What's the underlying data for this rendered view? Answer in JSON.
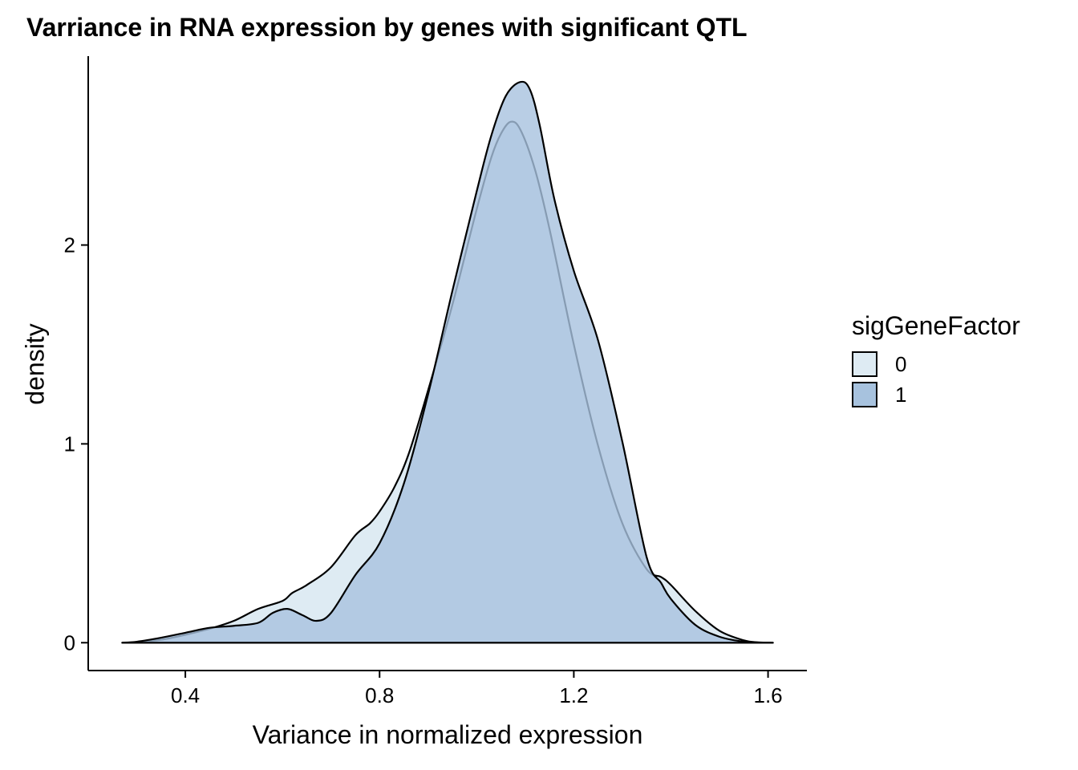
{
  "chart_data": {
    "type": "area",
    "title": "Varriance in RNA expression by genes with significant QTL",
    "xlabel": "Variance in normalized expression",
    "ylabel": "density",
    "xlim": [
      0.2,
      1.68
    ],
    "ylim": [
      -0.14,
      2.95
    ],
    "x_ticks": [
      0.4,
      0.8,
      1.2,
      1.6
    ],
    "x_tick_labels": [
      "0.4",
      "0.8",
      "1.2",
      "1.6"
    ],
    "y_ticks": [
      0,
      1,
      2
    ],
    "y_tick_labels": [
      "0",
      "1",
      "2"
    ],
    "grid": false,
    "legend": {
      "title": "sigGeneFactor",
      "position": "right",
      "entries": [
        {
          "label": "0",
          "color": "#deebf3"
        },
        {
          "label": "1",
          "color": "#a7c2de"
        }
      ]
    },
    "series": [
      {
        "name": "0",
        "color": "#deebf3",
        "x": [
          0.27,
          0.3,
          0.35,
          0.4,
          0.45,
          0.5,
          0.55,
          0.6,
          0.62,
          0.65,
          0.7,
          0.75,
          0.78,
          0.8,
          0.83,
          0.86,
          0.9,
          0.95,
          1.0,
          1.03,
          1.05,
          1.07,
          1.09,
          1.12,
          1.15,
          1.2,
          1.25,
          1.3,
          1.35,
          1.38,
          1.4,
          1.45,
          1.5,
          1.55,
          1.58,
          1.61
        ],
        "y": [
          0.0,
          0.003,
          0.015,
          0.04,
          0.07,
          0.11,
          0.17,
          0.21,
          0.25,
          0.29,
          0.38,
          0.54,
          0.6,
          0.66,
          0.78,
          0.95,
          1.27,
          1.7,
          2.18,
          2.44,
          2.56,
          2.62,
          2.58,
          2.38,
          2.08,
          1.5,
          0.99,
          0.6,
          0.37,
          0.33,
          0.29,
          0.16,
          0.06,
          0.012,
          0.002,
          0.0
        ]
      },
      {
        "name": "1",
        "color": "#a7c2de",
        "x": [
          0.27,
          0.3,
          0.35,
          0.4,
          0.45,
          0.5,
          0.55,
          0.58,
          0.61,
          0.64,
          0.67,
          0.7,
          0.75,
          0.8,
          0.85,
          0.9,
          0.95,
          1.0,
          1.03,
          1.06,
          1.09,
          1.11,
          1.13,
          1.16,
          1.2,
          1.25,
          1.3,
          1.35,
          1.38,
          1.4,
          1.45,
          1.5,
          1.55,
          1.58,
          1.61
        ],
        "y": [
          0.0,
          0.005,
          0.025,
          0.05,
          0.075,
          0.085,
          0.1,
          0.15,
          0.17,
          0.14,
          0.11,
          0.15,
          0.34,
          0.5,
          0.8,
          1.25,
          1.77,
          2.27,
          2.55,
          2.75,
          2.82,
          2.78,
          2.6,
          2.23,
          1.87,
          1.52,
          1.01,
          0.43,
          0.3,
          0.22,
          0.09,
          0.03,
          0.005,
          0.001,
          0.0
        ]
      }
    ]
  }
}
